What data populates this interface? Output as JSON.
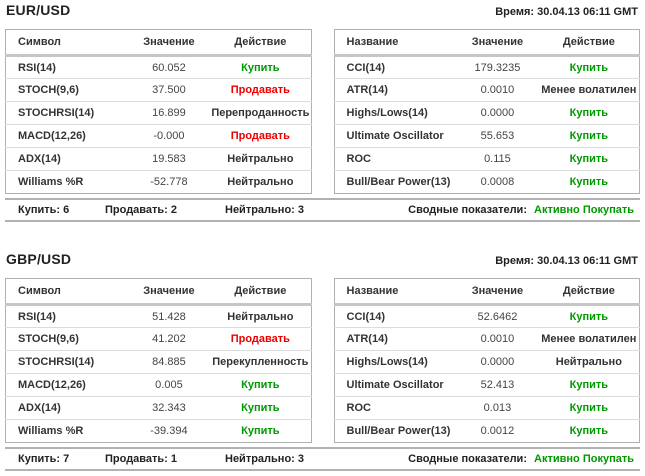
{
  "colors": {
    "buy_green": "#009900",
    "sell_red": "#ee0000",
    "border_gray": "#b0b0b0"
  },
  "sections": [
    {
      "pair": "EUR/USD",
      "time_label": "Время: 30.04.13 06:11 GMT",
      "left_table": {
        "headers": [
          "Символ",
          "Значение",
          "Действие"
        ],
        "rows": [
          {
            "name": "RSI(14)",
            "value": "60.052",
            "action": "Купить",
            "color": "green"
          },
          {
            "name": "STOCH(9,6)",
            "value": "37.500",
            "action": "Продавать",
            "color": "red"
          },
          {
            "name": "STOCHRSI(14)",
            "value": "16.899",
            "action": "Перепроданность",
            "color": "black"
          },
          {
            "name": "MACD(12,26)",
            "value": "-0.000",
            "action": "Продавать",
            "color": "red"
          },
          {
            "name": "ADX(14)",
            "value": "19.583",
            "action": "Нейтрально",
            "color": "black"
          },
          {
            "name": "Williams %R",
            "value": "-52.778",
            "action": "Нейтрально",
            "color": "black"
          }
        ]
      },
      "right_table": {
        "headers": [
          "Название",
          "Значение",
          "Действие"
        ],
        "rows": [
          {
            "name": "CCI(14)",
            "value": "179.3235",
            "action": "Купить",
            "color": "green"
          },
          {
            "name": "ATR(14)",
            "value": "0.0010",
            "action": "Менее волатилен",
            "color": "black"
          },
          {
            "name": "Highs/Lows(14)",
            "value": "0.0000",
            "action": "Купить",
            "color": "green"
          },
          {
            "name": "Ultimate Oscillator",
            "value": "55.653",
            "action": "Купить",
            "color": "green"
          },
          {
            "name": "ROC",
            "value": "0.115",
            "action": "Купить",
            "color": "green"
          },
          {
            "name": "Bull/Bear Power(13)",
            "value": "0.0008",
            "action": "Купить",
            "color": "green"
          }
        ]
      },
      "summary": {
        "buy": "Купить: 6",
        "sell": "Продавать: 2",
        "neutral": "Нейтрально: 3",
        "overall_label": "Сводные показатели:",
        "overall_value": "Активно Покупать"
      }
    },
    {
      "pair": "GBP/USD",
      "time_label": "Время: 30.04.13 06:11 GMT",
      "left_table": {
        "headers": [
          "Символ",
          "Значение",
          "Действие"
        ],
        "rows": [
          {
            "name": "RSI(14)",
            "value": "51.428",
            "action": "Нейтрально",
            "color": "black"
          },
          {
            "name": "STOCH(9,6)",
            "value": "41.202",
            "action": "Продавать",
            "color": "red"
          },
          {
            "name": "STOCHRSI(14)",
            "value": "84.885",
            "action": "Перекупленность",
            "color": "black"
          },
          {
            "name": "MACD(12,26)",
            "value": "0.005",
            "action": "Купить",
            "color": "green"
          },
          {
            "name": "ADX(14)",
            "value": "32.343",
            "action": "Купить",
            "color": "green"
          },
          {
            "name": "Williams %R",
            "value": "-39.394",
            "action": "Купить",
            "color": "green"
          }
        ]
      },
      "right_table": {
        "headers": [
          "Название",
          "Значение",
          "Действие"
        ],
        "rows": [
          {
            "name": "CCI(14)",
            "value": "52.6462",
            "action": "Купить",
            "color": "green"
          },
          {
            "name": "ATR(14)",
            "value": "0.0010",
            "action": "Менее волатилен",
            "color": "black"
          },
          {
            "name": "Highs/Lows(14)",
            "value": "0.0000",
            "action": "Нейтрально",
            "color": "black"
          },
          {
            "name": "Ultimate Oscillator",
            "value": "52.413",
            "action": "Купить",
            "color": "green"
          },
          {
            "name": "ROC",
            "value": "0.013",
            "action": "Купить",
            "color": "green"
          },
          {
            "name": "Bull/Bear Power(13)",
            "value": "0.0012",
            "action": "Купить",
            "color": "green"
          }
        ]
      },
      "summary": {
        "buy": "Купить: 7",
        "sell": "Продавать: 1",
        "neutral": "Нейтрально: 3",
        "overall_label": "Сводные показатели:",
        "overall_value": "Активно Покупать"
      }
    }
  ]
}
